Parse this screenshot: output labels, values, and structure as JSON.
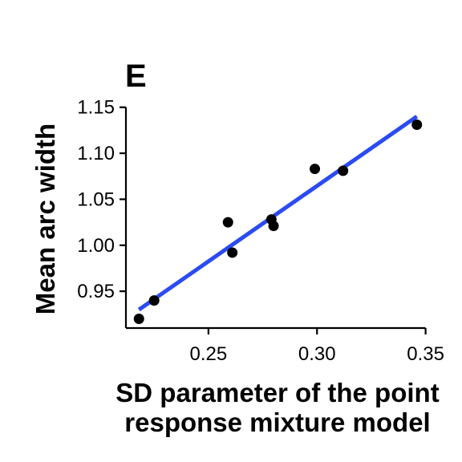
{
  "chart_data": {
    "type": "scatter",
    "title": "E",
    "xlabel_lines": [
      "SD parameter of the point",
      "response mixture model"
    ],
    "ylabel": "Mean arc width",
    "xlim": [
      0.212,
      0.352
    ],
    "ylim": [
      0.91,
      1.155
    ],
    "x_ticks": [
      0.25,
      0.3,
      0.35
    ],
    "x_tick_labels": [
      "0.25",
      "0.30",
      "0.35"
    ],
    "y_ticks": [
      0.95,
      1.0,
      1.05,
      1.1,
      1.15
    ],
    "y_tick_labels": [
      "0.95",
      "1.00",
      "1.05",
      "1.10",
      "1.15"
    ],
    "grid": false,
    "points": [
      {
        "x": 0.218,
        "y": 0.92
      },
      {
        "x": 0.225,
        "y": 0.94
      },
      {
        "x": 0.259,
        "y": 1.025
      },
      {
        "x": 0.261,
        "y": 0.992
      },
      {
        "x": 0.279,
        "y": 1.028
      },
      {
        "x": 0.28,
        "y": 1.021
      },
      {
        "x": 0.299,
        "y": 1.083
      },
      {
        "x": 0.312,
        "y": 1.081
      },
      {
        "x": 0.346,
        "y": 1.131
      }
    ],
    "fit_line": {
      "x": [
        0.218,
        0.346
      ],
      "y": [
        0.93,
        1.14
      ],
      "color": "#2B4BF2"
    },
    "point_color": "#000000"
  }
}
